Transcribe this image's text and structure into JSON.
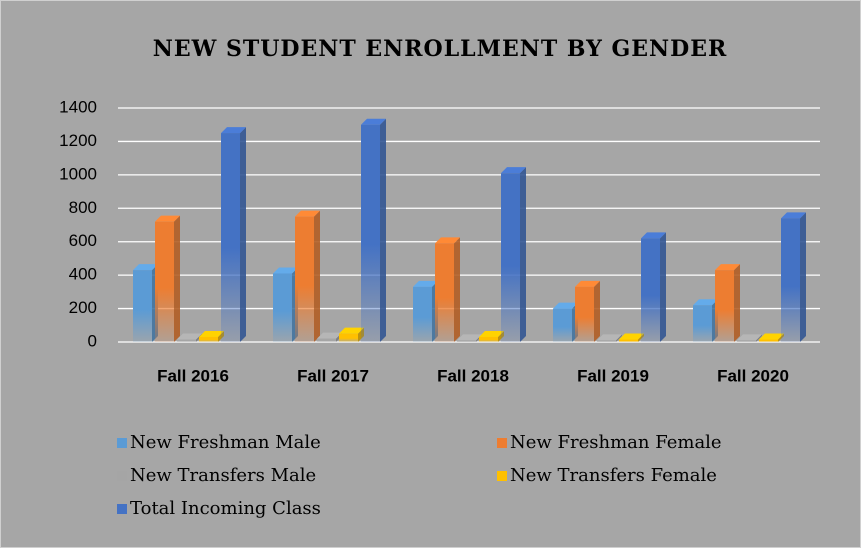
{
  "chart_data": {
    "type": "bar3d",
    "title": "NEW STUDENT ENROLLMENT BY GENDER",
    "categories": [
      "Fall 2016",
      "Fall 2017",
      "Fall 2018",
      "Fall 2019",
      "Fall 2020"
    ],
    "series": [
      {
        "name": "New Freshman Male",
        "color": "#5b9bd5",
        "values": [
          430,
          410,
          330,
          200,
          220
        ]
      },
      {
        "name": "New Freshman Female",
        "color": "#ed7d31",
        "values": [
          720,
          750,
          590,
          330,
          430
        ]
      },
      {
        "name": "New Transfers Male",
        "color": "#a5a5a5",
        "values": [
          15,
          20,
          10,
          10,
          10
        ]
      },
      {
        "name": "New Transfers Female",
        "color": "#ffc000",
        "values": [
          30,
          50,
          30,
          15,
          15
        ]
      },
      {
        "name": "Total Incoming Class",
        "color": "#4472c4",
        "values": [
          1250,
          1300,
          1010,
          620,
          740
        ]
      }
    ],
    "ylim": [
      0,
      1400
    ],
    "yticks": [
      0,
      200,
      400,
      600,
      800,
      1000,
      1200,
      1400
    ],
    "grid": true,
    "legend": "bottom"
  }
}
